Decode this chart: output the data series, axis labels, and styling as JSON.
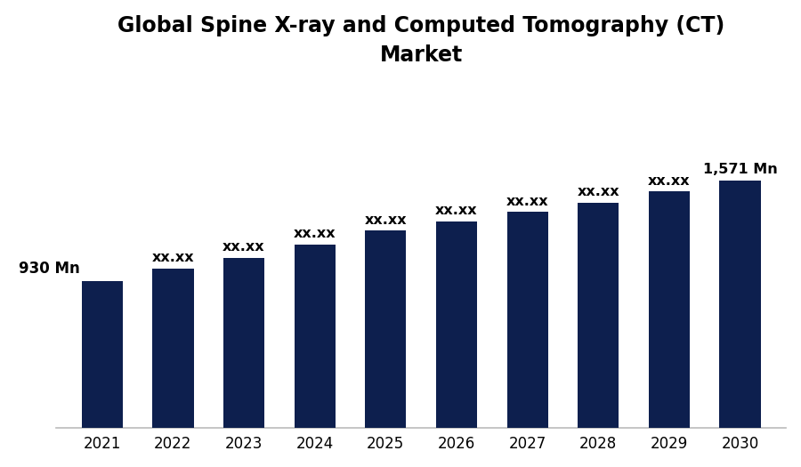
{
  "title_line1": "Global Spine X-ray and Computed Tomography (CT)",
  "title_line2": "Market",
  "title_fontsize": 17,
  "title_fontweight": "bold",
  "categories": [
    "2021",
    "2022",
    "2023",
    "2024",
    "2025",
    "2026",
    "2027",
    "2028",
    "2029",
    "2030"
  ],
  "values": [
    930,
    1010,
    1080,
    1165,
    1250,
    1310,
    1370,
    1430,
    1500,
    1571
  ],
  "bar_color": "#0d1f4e",
  "labels": [
    "930 Mn",
    "xx.xx",
    "xx.xx",
    "xx.xx",
    "xx.xx",
    "xx.xx",
    "xx.xx",
    "xx.xx",
    "xx.xx",
    "1,571 Mn"
  ],
  "label_fontsize": 11.5,
  "label_fontweight": "bold",
  "ylim": [
    0,
    2200
  ],
  "background_color": "#ffffff",
  "tick_fontsize": 12,
  "bar_width": 0.58,
  "spine_color": "#bbbbbb"
}
